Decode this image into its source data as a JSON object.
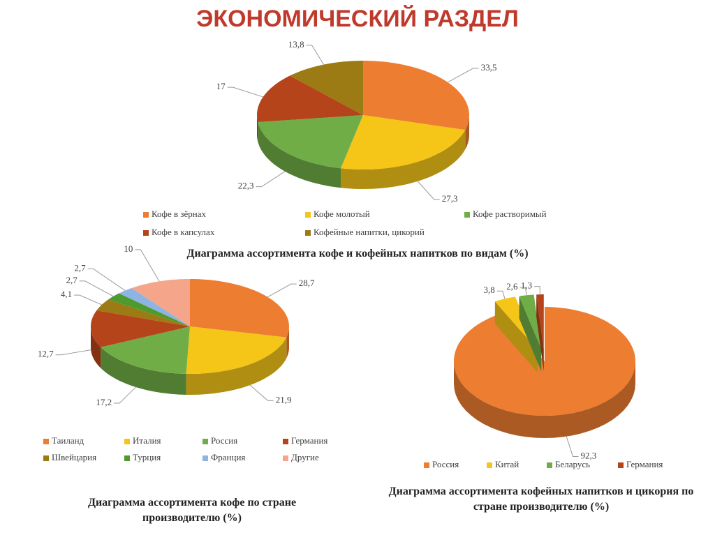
{
  "title": "ЭКОНОМИЧЕСКИЙ РАЗДЕЛ",
  "chart_data": [
    {
      "type": "pie",
      "title": "Диаграмма ассортимента кофе и кофейных напитков по видам (%)",
      "categories": [
        "Кофе в зёрнах",
        "Кофе молотый",
        "Кофе растворимый",
        "Кофе в капсулах",
        "Кофейные напитки, цикорий"
      ],
      "values": [
        33.5,
        27.3,
        22.3,
        17,
        13.8
      ],
      "value_labels": [
        "33,5",
        "27,3",
        "22,3",
        "17",
        "13,8"
      ],
      "colors": [
        "#ed7d31",
        "#f5c518",
        "#70ad47",
        "#b5441a",
        "#9c7a14"
      ]
    },
    {
      "type": "pie",
      "title": "Диаграмма ассортимента кофе по стране производителю (%)",
      "categories": [
        "Таиланд",
        "Италия",
        "Россия",
        "Германия",
        "Швейцария",
        "Турция",
        "Франция",
        "Другие"
      ],
      "values": [
        28.7,
        21.9,
        17.2,
        12.7,
        4.1,
        2.7,
        2.7,
        10
      ],
      "value_labels": [
        "28,7",
        "21,9",
        "17,2",
        "12,7",
        "4,1",
        "2,7",
        "2,7",
        "10"
      ],
      "colors": [
        "#ed7d31",
        "#f5c518",
        "#70ad47",
        "#b5441a",
        "#9c7a14",
        "#4e9a2e",
        "#8db4e2",
        "#f4a58a"
      ]
    },
    {
      "type": "pie",
      "title": "Диаграмма ассортимента кофейных напитков и цикория по стране производителю (%)",
      "categories": [
        "Россия",
        "Китай",
        "Беларусь",
        "Германия"
      ],
      "values": [
        92.3,
        3.8,
        2.6,
        1.3
      ],
      "value_labels": [
        "92,3",
        "3,8",
        "2,6",
        "1,3"
      ],
      "colors": [
        "#ed7d31",
        "#f5c518",
        "#70ad47",
        "#b5441a"
      ]
    }
  ]
}
